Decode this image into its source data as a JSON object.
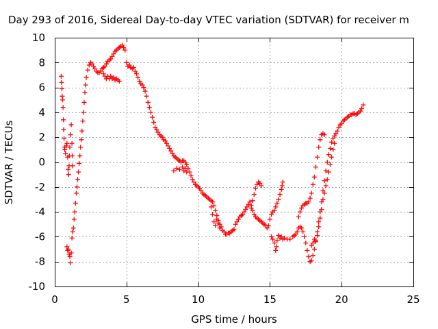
{
  "chart_data": {
    "type": "scatter",
    "title": "Day 293 of 2016, Sidereal Day-to-day VTEC variation (SDTVAR) for receiver m",
    "xlabel": "GPS time / hours",
    "ylabel": "SDTVAR / TECUs",
    "xlim": [
      0,
      25
    ],
    "ylim": [
      -10,
      10
    ],
    "x_ticks": [
      0,
      5,
      10,
      15,
      20,
      25
    ],
    "y_ticks": [
      -10,
      -8,
      -6,
      -4,
      -2,
      0,
      2,
      4,
      6,
      8,
      10
    ],
    "grid": true,
    "marker": "plus",
    "series_color": "#ff0000",
    "series": [
      {
        "points": [
          [
            0.45,
            6.9
          ],
          [
            0.47,
            6.4
          ],
          [
            0.5,
            5.9
          ],
          [
            0.52,
            5.3
          ],
          [
            0.55,
            5.0
          ],
          [
            0.58,
            4.4
          ],
          [
            0.6,
            3.4
          ],
          [
            0.62,
            2.6
          ],
          [
            0.65,
            1.9
          ],
          [
            0.68,
            1.2
          ],
          [
            0.7,
            1.0
          ],
          [
            0.75,
            0.7
          ],
          [
            0.8,
            1.3
          ],
          [
            0.85,
            1.5
          ],
          [
            0.9,
            0.4
          ],
          [
            0.93,
            -0.6
          ],
          [
            0.97,
            -1.0
          ],
          [
            1.0,
            -0.3
          ],
          [
            1.02,
            0.5
          ],
          [
            1.05,
            1.2
          ],
          [
            1.1,
            2.2
          ],
          [
            1.15,
            3.0
          ],
          [
            1.2,
            1.5
          ],
          [
            1.22,
            0.5
          ],
          [
            1.25,
            -0.3
          ],
          [
            0.85,
            -6.8
          ],
          [
            0.9,
            -7.1
          ],
          [
            0.95,
            -7.0
          ],
          [
            1.0,
            -7.4
          ],
          [
            1.05,
            -7.6
          ],
          [
            1.1,
            -8.1
          ],
          [
            1.15,
            -7.3
          ],
          [
            1.2,
            -6.1
          ],
          [
            1.25,
            -5.6
          ],
          [
            1.3,
            -5.3
          ],
          [
            1.35,
            -4.6
          ],
          [
            1.4,
            -4.0
          ],
          [
            1.45,
            -3.3
          ],
          [
            1.5,
            -2.5
          ],
          [
            1.55,
            -2.0
          ],
          [
            1.6,
            -1.4
          ],
          [
            1.65,
            -0.8
          ],
          [
            1.7,
            -0.1
          ],
          [
            1.75,
            0.5
          ],
          [
            1.8,
            1.2
          ],
          [
            1.85,
            1.8
          ],
          [
            1.9,
            2.5
          ],
          [
            1.95,
            3.3
          ],
          [
            2.0,
            4.0
          ],
          [
            2.05,
            4.8
          ],
          [
            2.1,
            5.6
          ],
          [
            2.15,
            6.2
          ],
          [
            2.2,
            6.8
          ],
          [
            2.3,
            7.4
          ],
          [
            2.4,
            7.8
          ],
          [
            2.5,
            8.0
          ],
          [
            2.6,
            7.9
          ],
          [
            2.7,
            7.7
          ],
          [
            2.8,
            7.5
          ],
          [
            2.9,
            7.3
          ],
          [
            3.0,
            7.2
          ],
          [
            3.1,
            7.2
          ],
          [
            3.2,
            7.3
          ],
          [
            3.3,
            7.5
          ],
          [
            3.4,
            7.6
          ],
          [
            3.5,
            7.7
          ],
          [
            3.6,
            7.9
          ],
          [
            3.7,
            8.1
          ],
          [
            3.8,
            8.2
          ],
          [
            3.9,
            8.3
          ],
          [
            4.0,
            8.5
          ],
          [
            4.1,
            8.7
          ],
          [
            4.2,
            8.9
          ],
          [
            4.3,
            9.0
          ],
          [
            4.4,
            9.1
          ],
          [
            4.5,
            9.2
          ],
          [
            4.6,
            9.3
          ],
          [
            4.7,
            9.4
          ],
          [
            4.8,
            9.2
          ],
          [
            4.9,
            9.0
          ],
          [
            3.4,
            7.1
          ],
          [
            3.5,
            6.9
          ],
          [
            3.6,
            6.7
          ],
          [
            3.7,
            6.9
          ],
          [
            3.8,
            6.7
          ],
          [
            3.9,
            6.9
          ],
          [
            4.0,
            6.7
          ],
          [
            4.1,
            6.8
          ],
          [
            4.2,
            6.6
          ],
          [
            4.3,
            6.7
          ],
          [
            4.4,
            6.6
          ],
          [
            4.5,
            6.5
          ],
          [
            5.0,
            8.0
          ],
          [
            5.1,
            7.7
          ],
          [
            5.2,
            7.8
          ],
          [
            5.3,
            7.6
          ],
          [
            5.4,
            7.5
          ],
          [
            5.5,
            7.6
          ],
          [
            5.6,
            7.3
          ],
          [
            5.7,
            7.1
          ],
          [
            5.8,
            6.8
          ],
          [
            5.9,
            6.5
          ],
          [
            6.0,
            6.3
          ],
          [
            6.1,
            6.2
          ],
          [
            6.2,
            6.0
          ],
          [
            6.3,
            5.7
          ],
          [
            6.4,
            5.3
          ],
          [
            6.5,
            4.8
          ],
          [
            6.6,
            4.4
          ],
          [
            6.7,
            4.0
          ],
          [
            6.8,
            3.6
          ],
          [
            6.9,
            3.2
          ],
          [
            7.0,
            2.8
          ],
          [
            7.1,
            2.6
          ],
          [
            7.2,
            2.4
          ],
          [
            7.3,
            2.2
          ],
          [
            7.4,
            2.1
          ],
          [
            7.5,
            2.0
          ],
          [
            7.6,
            1.8
          ],
          [
            7.7,
            1.7
          ],
          [
            7.8,
            1.5
          ],
          [
            7.9,
            1.3
          ],
          [
            8.0,
            1.1
          ],
          [
            8.1,
            0.9
          ],
          [
            8.2,
            0.7
          ],
          [
            8.3,
            0.5
          ],
          [
            8.4,
            0.4
          ],
          [
            8.5,
            0.3
          ],
          [
            8.6,
            0.2
          ],
          [
            8.7,
            0.1
          ],
          [
            8.8,
            0.0
          ],
          [
            8.9,
            0.1
          ],
          [
            9.0,
            0.1
          ],
          [
            9.1,
            0.0
          ],
          [
            9.2,
            -0.2
          ],
          [
            9.3,
            -0.5
          ],
          [
            9.4,
            -0.8
          ],
          [
            9.5,
            -1.1
          ],
          [
            9.6,
            -1.4
          ],
          [
            9.7,
            -1.6
          ],
          [
            9.8,
            -1.8
          ],
          [
            9.9,
            -1.9
          ],
          [
            10.0,
            -2.0
          ],
          [
            10.1,
            -2.1
          ],
          [
            10.2,
            -2.3
          ],
          [
            10.3,
            -2.5
          ],
          [
            10.4,
            -2.6
          ],
          [
            10.5,
            -2.7
          ],
          [
            10.6,
            -2.8
          ],
          [
            10.7,
            -2.9
          ],
          [
            10.8,
            -3.0
          ],
          [
            10.9,
            -3.1
          ],
          [
            11.0,
            -3.2
          ],
          [
            11.1,
            -3.5
          ],
          [
            11.2,
            -3.9
          ],
          [
            11.3,
            -4.3
          ],
          [
            11.4,
            -4.7
          ],
          [
            11.5,
            -5.0
          ],
          [
            11.6,
            -5.2
          ],
          [
            11.7,
            -5.5
          ],
          [
            11.8,
            -5.6
          ],
          [
            11.9,
            -5.8
          ],
          [
            12.0,
            -5.8
          ],
          [
            12.1,
            -5.7
          ],
          [
            12.2,
            -5.7
          ],
          [
            12.3,
            -5.6
          ],
          [
            12.4,
            -5.5
          ],
          [
            12.5,
            -5.4
          ],
          [
            12.6,
            -5.0
          ],
          [
            12.7,
            -4.8
          ],
          [
            12.8,
            -4.6
          ],
          [
            12.9,
            -4.4
          ],
          [
            13.0,
            -4.3
          ],
          [
            13.1,
            -4.2
          ],
          [
            13.2,
            -4.0
          ],
          [
            13.3,
            -3.8
          ],
          [
            13.4,
            -3.6
          ],
          [
            13.5,
            -3.4
          ],
          [
            13.6,
            -3.2
          ],
          [
            13.7,
            -3.5
          ],
          [
            13.8,
            -3.9
          ],
          [
            13.9,
            -4.2
          ],
          [
            14.0,
            -4.4
          ],
          [
            14.1,
            -4.5
          ],
          [
            14.2,
            -4.6
          ],
          [
            14.3,
            -4.7
          ],
          [
            14.4,
            -4.8
          ],
          [
            14.5,
            -4.9
          ],
          [
            14.6,
            -5.0
          ],
          [
            14.7,
            -5.1
          ],
          [
            14.8,
            -5.3
          ],
          [
            14.9,
            -5.1
          ],
          [
            15.0,
            -4.6
          ],
          [
            15.1,
            -4.2
          ],
          [
            15.2,
            -4.0
          ],
          [
            15.3,
            -3.9
          ],
          [
            15.4,
            -3.6
          ],
          [
            15.5,
            -3.3
          ],
          [
            15.6,
            -3.0
          ],
          [
            15.7,
            -2.6
          ],
          [
            15.8,
            -2.2
          ],
          [
            15.85,
            -1.9
          ],
          [
            15.9,
            -1.6
          ],
          [
            8.3,
            -0.7
          ],
          [
            8.5,
            -0.5
          ],
          [
            8.7,
            -0.6
          ],
          [
            8.9,
            -0.4
          ],
          [
            9.0,
            -0.7
          ],
          [
            9.1,
            -0.5
          ],
          [
            9.2,
            -0.8
          ],
          [
            10.9,
            -3.6
          ],
          [
            11.0,
            -4.2
          ],
          [
            11.1,
            -4.8
          ],
          [
            11.2,
            -5.1
          ],
          [
            11.3,
            -4.6
          ],
          [
            11.4,
            -4.9
          ],
          [
            11.5,
            -5.3
          ],
          [
            13.7,
            -3.7
          ],
          [
            13.8,
            -3.1
          ],
          [
            13.9,
            -2.6
          ],
          [
            14.0,
            -2.1
          ],
          [
            14.1,
            -1.8
          ],
          [
            14.2,
            -1.6
          ],
          [
            14.3,
            -1.7
          ],
          [
            14.4,
            -1.9
          ],
          [
            15.1,
            -6.0
          ],
          [
            15.2,
            -6.2
          ],
          [
            15.3,
            -6.5
          ],
          [
            15.4,
            -7.1
          ],
          [
            15.45,
            -6.8
          ],
          [
            15.5,
            -6.3
          ],
          [
            15.6,
            -5.9
          ],
          [
            15.7,
            -6.1
          ],
          [
            15.8,
            -6.0
          ],
          [
            15.9,
            -6.2
          ],
          [
            16.0,
            -6.1
          ],
          [
            16.2,
            -6.2
          ],
          [
            16.4,
            -6.2
          ],
          [
            16.6,
            -6.0
          ],
          [
            16.7,
            -5.9
          ],
          [
            16.8,
            -5.8
          ],
          [
            16.9,
            -5.6
          ],
          [
            17.0,
            -5.3
          ],
          [
            17.1,
            -5.2
          ],
          [
            17.2,
            -5.3
          ],
          [
            17.3,
            -5.6
          ],
          [
            17.4,
            -6.0
          ],
          [
            17.5,
            -6.5
          ],
          [
            17.6,
            -7.1
          ],
          [
            17.7,
            -7.6
          ],
          [
            17.8,
            -8.0
          ],
          [
            17.9,
            -7.9
          ],
          [
            18.0,
            -7.5
          ],
          [
            18.1,
            -7.0
          ],
          [
            18.2,
            -6.4
          ],
          [
            18.3,
            -5.6
          ],
          [
            18.4,
            -4.8
          ],
          [
            18.5,
            -4.0
          ],
          [
            18.6,
            -3.2
          ],
          [
            18.7,
            -2.3
          ],
          [
            18.8,
            -1.5
          ],
          [
            18.9,
            -0.7
          ],
          [
            19.0,
            0.0
          ],
          [
            19.1,
            0.6
          ],
          [
            19.2,
            1.1
          ],
          [
            19.3,
            1.6
          ],
          [
            19.4,
            1.9
          ],
          [
            19.5,
            2.1
          ],
          [
            19.6,
            2.3
          ],
          [
            19.7,
            2.5
          ],
          [
            19.8,
            2.8
          ],
          [
            19.9,
            3.0
          ],
          [
            20.0,
            3.1
          ],
          [
            20.1,
            3.3
          ],
          [
            20.2,
            3.4
          ],
          [
            20.3,
            3.5
          ],
          [
            20.4,
            3.6
          ],
          [
            20.5,
            3.7
          ],
          [
            20.6,
            3.8
          ],
          [
            20.7,
            3.8
          ],
          [
            20.8,
            3.9
          ],
          [
            20.9,
            3.9
          ],
          [
            21.0,
            3.8
          ],
          [
            21.1,
            3.9
          ],
          [
            21.2,
            4.0
          ],
          [
            21.3,
            4.1
          ],
          [
            21.4,
            4.3
          ],
          [
            21.5,
            4.6
          ],
          [
            17.0,
            -4.4
          ],
          [
            17.1,
            -4.0
          ],
          [
            17.2,
            -3.7
          ],
          [
            17.3,
            -3.5
          ],
          [
            17.4,
            -3.4
          ],
          [
            17.5,
            -3.3
          ],
          [
            17.6,
            -3.3
          ],
          [
            17.7,
            -3.2
          ],
          [
            17.8,
            -2.9
          ],
          [
            17.9,
            -2.5
          ],
          [
            18.0,
            -1.8
          ],
          [
            18.1,
            -1.2
          ],
          [
            18.2,
            -0.4
          ],
          [
            18.3,
            0.4
          ],
          [
            18.4,
            1.2
          ],
          [
            18.5,
            1.8
          ],
          [
            18.6,
            2.2
          ],
          [
            18.7,
            2.3
          ],
          [
            18.8,
            2.2
          ],
          [
            17.9,
            -6.7
          ],
          [
            18.0,
            -6.5
          ],
          [
            18.1,
            -6.2
          ],
          [
            18.2,
            -6.3
          ],
          [
            18.3,
            -5.9
          ],
          [
            18.4,
            -5.2
          ],
          [
            18.5,
            -4.5
          ],
          [
            18.6,
            -3.8
          ],
          [
            18.7,
            -3.0
          ],
          [
            18.8,
            -2.5
          ],
          [
            18.9,
            -1.9
          ],
          [
            19.0,
            -1.4
          ],
          [
            19.1,
            -0.8
          ],
          [
            19.2,
            -0.2
          ],
          [
            19.3,
            0.4
          ],
          [
            19.4,
            1.0
          ],
          [
            19.5,
            1.5
          ]
        ]
      }
    ]
  }
}
